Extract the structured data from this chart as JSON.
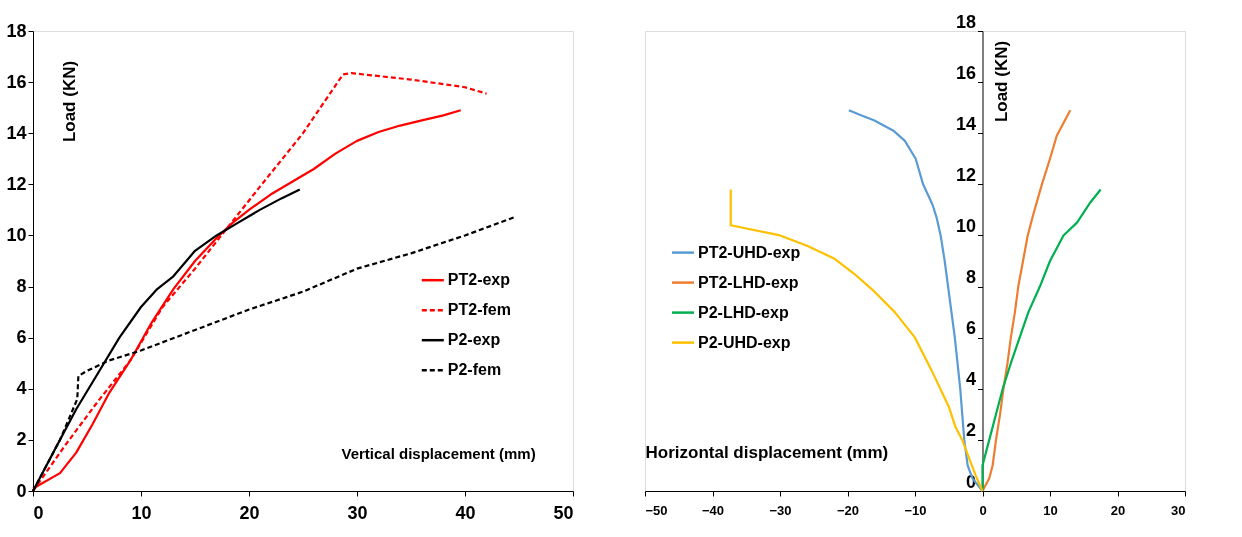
{
  "chart_data": [
    {
      "type": "line",
      "xlabel": "Vertical displacement (mm)",
      "ylabel": "Load (KN)",
      "xlim": [
        0,
        50
      ],
      "xticks": [
        0,
        10,
        20,
        30,
        40,
        50
      ],
      "ylim": [
        0,
        18
      ],
      "yticks": [
        0,
        2,
        4,
        6,
        8,
        10,
        12,
        14,
        16,
        18
      ],
      "grid": false,
      "legend": "right",
      "marker": "none",
      "series": [
        {
          "name": "PT2-exp",
          "color": "#ff0000",
          "line_style": "solid",
          "x": [
            0,
            2.5,
            4,
            5.5,
            7,
            9,
            11,
            13,
            15,
            17,
            18.5,
            20,
            22,
            24,
            26,
            28,
            30,
            32,
            34,
            36,
            38,
            39.6
          ],
          "values": [
            0.1,
            0.7,
            1.5,
            2.6,
            3.8,
            5.1,
            6.6,
            7.9,
            9.0,
            9.9,
            10.5,
            11.0,
            11.6,
            12.1,
            12.6,
            13.2,
            13.7,
            14.05,
            14.3,
            14.5,
            14.7,
            14.9
          ]
        },
        {
          "name": "PT2-fem",
          "color": "#ff0000",
          "line_style": "dashed",
          "x": [
            0,
            3,
            6,
            9,
            12,
            15,
            18,
            21,
            25,
            28.7,
            29.5,
            35,
            40,
            42
          ],
          "values": [
            0,
            1.8,
            3.5,
            5.1,
            7.2,
            8.7,
            10.3,
            11.9,
            14.0,
            16.3,
            16.35,
            16.1,
            15.8,
            15.55
          ]
        },
        {
          "name": "P2-exp",
          "color": "#000000",
          "line_style": "solid",
          "x": [
            0,
            2,
            4,
            6,
            8,
            10,
            11.5,
            13,
            15,
            17,
            19,
            21,
            23,
            24.7
          ],
          "values": [
            0,
            1.6,
            3.2,
            4.6,
            6.0,
            7.2,
            7.9,
            8.4,
            9.4,
            10.0,
            10.5,
            11.0,
            11.45,
            11.8
          ]
        },
        {
          "name": "P2-fem",
          "color": "#000000",
          "line_style": "dashed",
          "x": [
            0,
            2.5,
            4.1,
            4.2,
            5,
            7,
            10,
            15,
            20,
            25,
            30,
            35,
            40,
            44.5
          ],
          "values": [
            0,
            2.0,
            3.6,
            4.5,
            4.7,
            5.1,
            5.5,
            6.3,
            7.1,
            7.8,
            8.7,
            9.3,
            10.0,
            10.7
          ]
        }
      ]
    },
    {
      "type": "line",
      "xlabel": "Horizontal displacement (mm)",
      "ylabel": "Load (KN)",
      "xlim": [
        -50,
        30
      ],
      "xticks": [
        -50,
        -40,
        -30,
        -20,
        -10,
        0,
        10,
        20,
        30
      ],
      "ylim": [
        0,
        18
      ],
      "yticks": [
        0,
        2,
        4,
        6,
        8,
        10,
        12,
        14,
        16,
        18
      ],
      "grid": false,
      "legend": "left",
      "marker": "none",
      "series": [
        {
          "name": "PT2-UHD-exp",
          "color": "#5b9bd5",
          "line_style": "solid",
          "x": [
            0,
            -1.5,
            -2.2,
            -2.7,
            -3,
            -3.3,
            -3.7,
            -4.1,
            -4.6,
            -5.1,
            -5.6,
            -6.2,
            -6.8,
            -7.4,
            -8.8,
            -9.9,
            -11.5,
            -13.2,
            -16,
            -18,
            -19.8
          ],
          "values": [
            0,
            0.5,
            1,
            2,
            3,
            4,
            5,
            6,
            7,
            8,
            9,
            10,
            10.7,
            11.2,
            12,
            13,
            13.7,
            14.1,
            14.5,
            14.7,
            14.9
          ]
        },
        {
          "name": "PT2-LHD-exp",
          "color": "#ed7d31",
          "line_style": "solid",
          "x": [
            0,
            1,
            1.5,
            2,
            2.6,
            3.1,
            3.7,
            4.2,
            4.8,
            5.3,
            6,
            6.7,
            7.5,
            8.8,
            10,
            11,
            13
          ],
          "values": [
            0,
            0.5,
            1,
            2,
            3,
            4,
            5,
            6,
            7,
            8,
            9,
            10,
            10.8,
            12,
            13,
            13.9,
            14.9
          ]
        },
        {
          "name": "P2-LHD-exp",
          "color": "#00b050",
          "line_style": "solid",
          "x": [
            0,
            0,
            1,
            2,
            3,
            4.2,
            5.5,
            6.8,
            8.5,
            10,
            12,
            14,
            16,
            17.5
          ],
          "values": [
            0,
            1,
            2,
            3,
            4,
            5,
            6,
            7,
            8,
            9,
            10,
            10.5,
            11.3,
            11.8
          ]
        },
        {
          "name": "P2-UHD-exp",
          "color": "#ffc000",
          "line_style": "solid",
          "x": [
            0,
            -1,
            -2,
            -3,
            -4,
            -5,
            -7.5,
            -10,
            -13,
            -16,
            -19,
            -22,
            -26,
            -30,
            -37.3,
            -37.3
          ],
          "values": [
            0,
            0.6,
            1.3,
            2,
            2.5,
            3.3,
            4.7,
            6,
            7,
            7.8,
            8.5,
            9.1,
            9.6,
            10.0,
            10.4,
            11.8
          ]
        }
      ]
    }
  ]
}
